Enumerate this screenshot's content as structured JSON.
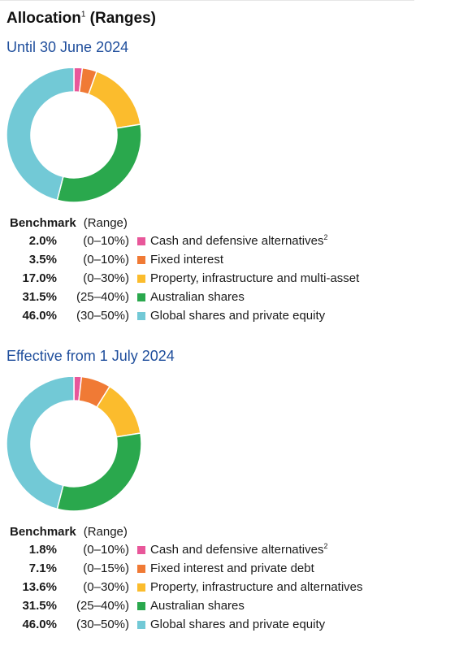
{
  "title": "Allocation",
  "title_footnote": "1",
  "title_suffix": " (Ranges)",
  "colors": {
    "cash": "#e8579a",
    "fixed": "#f07a35",
    "property": "#fbbc2d",
    "australian": "#2aa84d",
    "global": "#72c9d6",
    "heading": "#1f4e9c"
  },
  "chart_data": [
    {
      "type": "pie",
      "title": "Until 30 June 2024",
      "legend_header": {
        "benchmark": "Benchmark",
        "range": "(Range)"
      },
      "slices": [
        {
          "label": "Cash and defensive alternatives",
          "footnote": "2",
          "value": 2.0,
          "value_label": "2.0%",
          "range": "(0–10%)",
          "color": "#e8579a"
        },
        {
          "label": "Fixed interest",
          "footnote": "",
          "value": 3.5,
          "value_label": "3.5%",
          "range": "(0–10%)",
          "color": "#f07a35"
        },
        {
          "label": "Property, infrastructure and multi-asset",
          "footnote": "",
          "value": 17.0,
          "value_label": "17.0%",
          "range": "(0–30%)",
          "color": "#fbbc2d"
        },
        {
          "label": "Australian shares",
          "footnote": "",
          "value": 31.5,
          "value_label": "31.5%",
          "range": "(25–40%)",
          "color": "#2aa84d"
        },
        {
          "label": "Global shares and private equity",
          "footnote": "",
          "value": 46.0,
          "value_label": "46.0%",
          "range": "(30–50%)",
          "color": "#72c9d6"
        }
      ]
    },
    {
      "type": "pie",
      "title": "Effective from 1 July 2024",
      "legend_header": {
        "benchmark": "Benchmark",
        "range": "(Range)"
      },
      "slices": [
        {
          "label": "Cash and defensive alternatives",
          "footnote": "2",
          "value": 1.8,
          "value_label": "1.8%",
          "range": "(0–10%)",
          "color": "#e8579a"
        },
        {
          "label": "Fixed interest and private debt",
          "footnote": "",
          "value": 7.1,
          "value_label": "7.1%",
          "range": "(0–15%)",
          "color": "#f07a35"
        },
        {
          "label": "Property, infrastructure and alternatives",
          "footnote": "",
          "value": 13.6,
          "value_label": "13.6%",
          "range": "(0–30%)",
          "color": "#fbbc2d"
        },
        {
          "label": "Australian shares",
          "footnote": "",
          "value": 31.5,
          "value_label": "31.5%",
          "range": "(25–40%)",
          "color": "#2aa84d"
        },
        {
          "label": "Global shares and private equity",
          "footnote": "",
          "value": 46.0,
          "value_label": "46.0%",
          "range": "(30–50%)",
          "color": "#72c9d6"
        }
      ]
    }
  ]
}
